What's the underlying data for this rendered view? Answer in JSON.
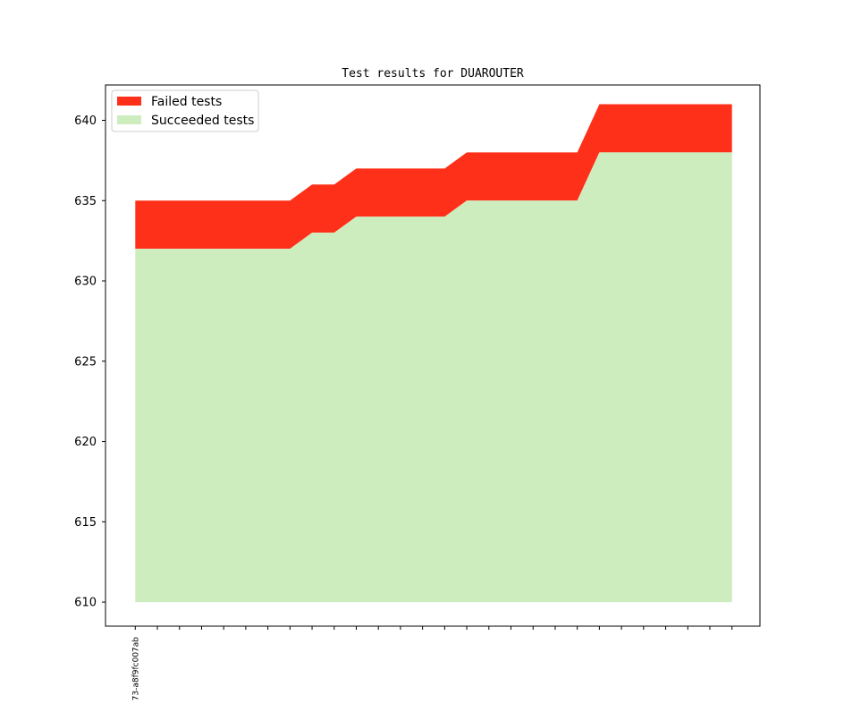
{
  "chart_data": {
    "type": "area",
    "title": "Test results for DUAROUTER",
    "xlabel": "",
    "ylabel": "",
    "ylim": [
      608.5,
      642.2
    ],
    "y_ticks": [
      610,
      615,
      620,
      625,
      630,
      635,
      640
    ],
    "x_tick_labels": [
      "73-a8f9fc007ab"
    ],
    "x_count": 28,
    "baseline": 610,
    "legend_position": "top-left",
    "series": [
      {
        "name": "Failed tests",
        "color": "#ff3019",
        "values": [
          635,
          635,
          635,
          635,
          635,
          635,
          635,
          635,
          636,
          636,
          637,
          637,
          637,
          637,
          637,
          638,
          638,
          638,
          638,
          638,
          638,
          641,
          641,
          641,
          641,
          641,
          641,
          641
        ]
      },
      {
        "name": "Succeeded tests",
        "color": "#ceedbe",
        "values": [
          632,
          632,
          632,
          632,
          632,
          632,
          632,
          632,
          633,
          633,
          634,
          634,
          634,
          634,
          634,
          635,
          635,
          635,
          635,
          635,
          635,
          638,
          638,
          638,
          638,
          638,
          638,
          638
        ]
      }
    ]
  }
}
